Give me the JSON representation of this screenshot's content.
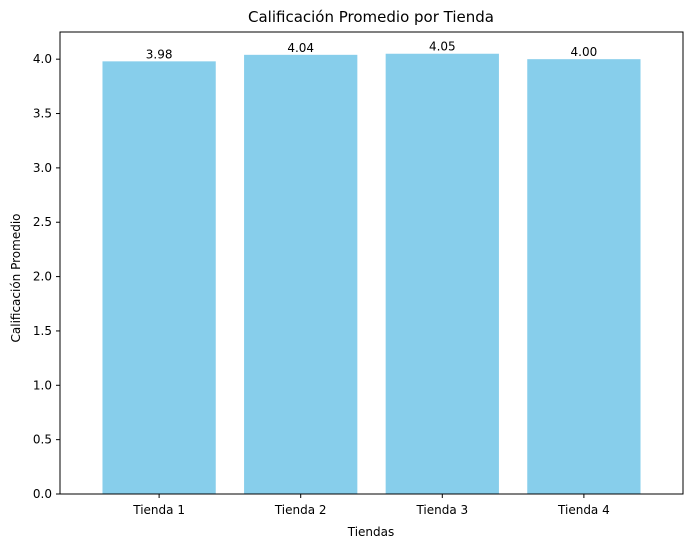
{
  "chart_data": {
    "type": "bar",
    "title": "Calificación Promedio por Tienda",
    "xlabel": "Tiendas",
    "ylabel": "Calificación Promedio",
    "categories": [
      "Tienda 1",
      "Tienda 2",
      "Tienda 3",
      "Tienda 4"
    ],
    "values": [
      3.98,
      4.04,
      4.05,
      4.0
    ],
    "data_labels": [
      "3.98",
      "4.04",
      "4.05",
      "4.00"
    ],
    "ylim": [
      0,
      4.25
    ],
    "yticks": [
      0.0,
      0.5,
      1.0,
      1.5,
      2.0,
      2.5,
      3.0,
      3.5,
      4.0
    ],
    "ytick_labels": [
      "0.0",
      "0.5",
      "1.0",
      "1.5",
      "2.0",
      "2.5",
      "3.0",
      "3.5",
      "4.0"
    ],
    "bar_color": "#87ceeb",
    "grid": false,
    "legend": "none"
  }
}
